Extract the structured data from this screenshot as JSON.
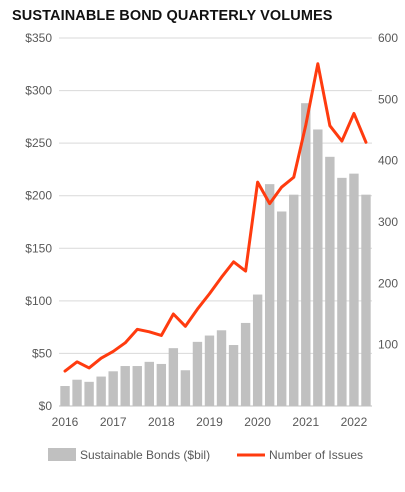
{
  "chart_data": {
    "type": "bar",
    "title": "SUSTAINABLE BOND QUARTERLY VOLUMES",
    "xlabel": "",
    "ylabel": "",
    "y2label": "",
    "ylim": [
      0,
      350
    ],
    "y2lim": [
      0,
      600
    ],
    "yticks": [
      "$0",
      "$50",
      "$100",
      "$150",
      "$200",
      "$250",
      "$300",
      "$350"
    ],
    "y2ticks": [
      "100",
      "200",
      "300",
      "400",
      "500",
      "600"
    ],
    "y2tick_values": [
      100,
      200,
      300,
      400,
      500,
      600
    ],
    "xtick_labels": [
      "2016",
      "2017",
      "2018",
      "2019",
      "2020",
      "2021",
      "2022"
    ],
    "xtick_positions": [
      0,
      4,
      8,
      12,
      16,
      20,
      24
    ],
    "grid": true,
    "legend": "bottom",
    "series": [
      {
        "name": "Sustainable Bonds ($bil)",
        "type": "bar",
        "axis": "left",
        "color": "#c0c0c0",
        "values": [
          19,
          25,
          23,
          28,
          33,
          38,
          38,
          42,
          40,
          55,
          34,
          61,
          67,
          72,
          58,
          79,
          106,
          211,
          185,
          201,
          288,
          263,
          237,
          217,
          221,
          201
        ]
      },
      {
        "name": "Number of Issues",
        "type": "line",
        "axis": "right",
        "color": "#ff3b0f",
        "values": [
          57,
          72,
          62,
          78,
          89,
          103,
          125,
          121,
          115,
          150,
          130,
          158,
          183,
          210,
          235,
          220,
          365,
          330,
          357,
          373,
          458,
          558,
          457,
          432,
          477,
          430
        ]
      }
    ]
  }
}
